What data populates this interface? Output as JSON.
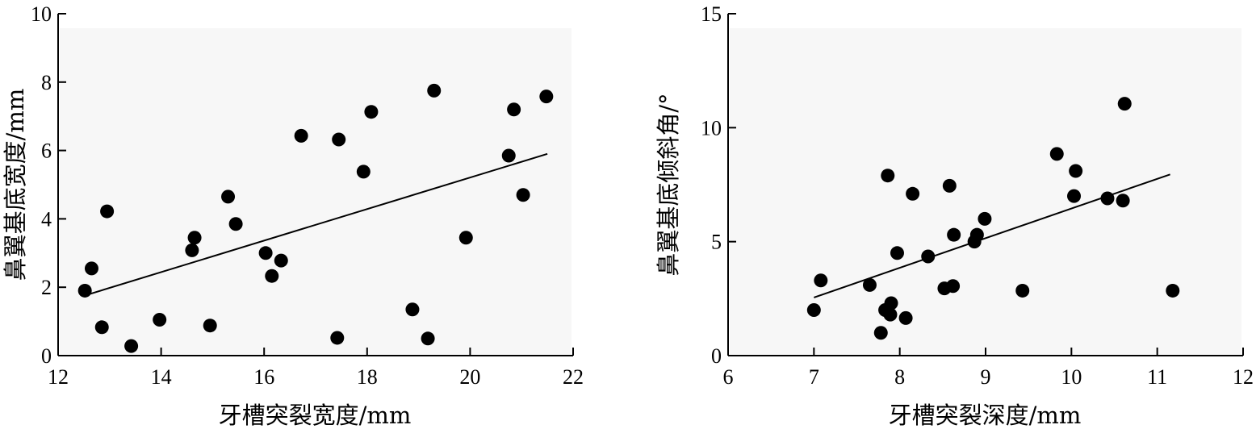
{
  "chart_data": [
    {
      "type": "scatter",
      "xlabel": "牙槽突裂宽度/mm",
      "ylabel": "鼻翼基底宽度/mm",
      "xlim": [
        12,
        22
      ],
      "ylim": [
        0,
        10
      ],
      "xticks": [
        12,
        14,
        16,
        18,
        20,
        22
      ],
      "yticks": [
        0,
        2,
        4,
        6,
        8,
        10
      ],
      "background": "#f7f7f7",
      "marker_color": "#000000",
      "series": [
        {
          "x": [
            12.52,
            12.65,
            12.85,
            12.95,
            13.42,
            13.97,
            14.6,
            14.65,
            14.95,
            15.3,
            15.45,
            16.03,
            16.15,
            16.33,
            16.72,
            17.42,
            17.45,
            17.93,
            18.08,
            18.88,
            19.18,
            19.3,
            19.92,
            20.75,
            20.85,
            21.03,
            21.48
          ],
          "y": [
            1.9,
            2.55,
            0.83,
            4.22,
            0.28,
            1.05,
            3.08,
            3.45,
            0.88,
            4.65,
            3.85,
            3.0,
            2.33,
            2.78,
            6.43,
            0.52,
            6.32,
            5.38,
            7.13,
            1.35,
            0.5,
            7.75,
            3.45,
            5.85,
            7.2,
            4.7,
            7.58
          ]
        }
      ],
      "trendline": {
        "x": [
          12.5,
          21.5
        ],
        "y": [
          1.75,
          5.9
        ]
      }
    },
    {
      "type": "scatter",
      "xlabel": "牙槽突裂深度/mm",
      "ylabel": "鼻翼基底倾斜角/°",
      "xlim": [
        6,
        12
      ],
      "ylim": [
        0,
        15
      ],
      "xticks": [
        6,
        7,
        8,
        9,
        10,
        11,
        12
      ],
      "yticks": [
        0,
        5,
        10,
        15
      ],
      "background": "#f7f7f7",
      "marker_color": "#000000",
      "series": [
        {
          "x": [
            7.0,
            7.08,
            7.65,
            7.78,
            7.83,
            7.86,
            7.89,
            7.9,
            7.97,
            8.07,
            8.15,
            8.33,
            8.52,
            8.58,
            8.62,
            8.63,
            8.87,
            8.9,
            8.99,
            9.43,
            9.83,
            10.03,
            10.05,
            10.42,
            10.6,
            10.62,
            11.18
          ],
          "y": [
            2.0,
            3.3,
            3.1,
            1.0,
            2.0,
            7.9,
            1.8,
            2.3,
            4.5,
            1.65,
            7.1,
            4.35,
            2.95,
            7.45,
            3.05,
            5.3,
            5.0,
            5.3,
            6.0,
            2.85,
            8.85,
            7.0,
            8.1,
            6.9,
            6.8,
            11.05,
            2.85
          ]
        }
      ],
      "trendline": {
        "x": [
          7.0,
          11.15
        ],
        "y": [
          2.55,
          7.95
        ]
      }
    }
  ]
}
